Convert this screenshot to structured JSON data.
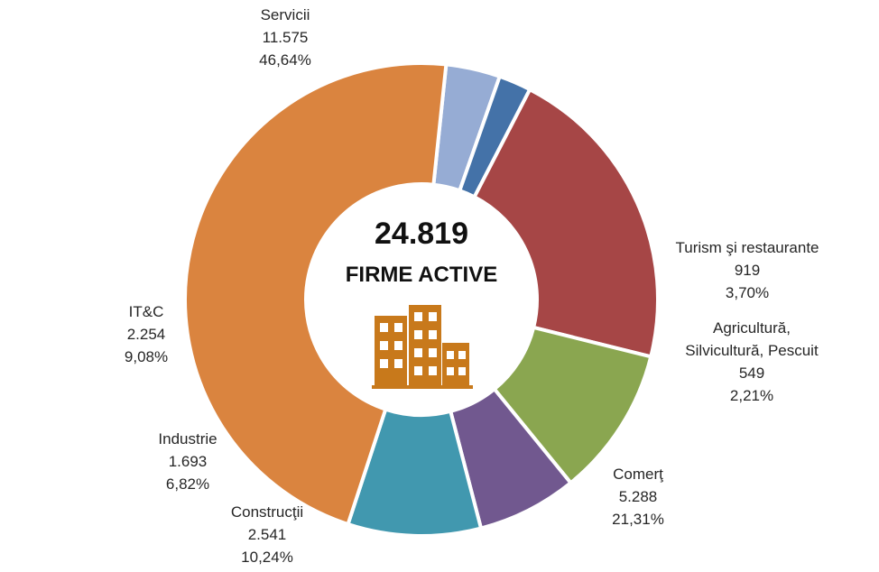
{
  "chart_data": {
    "type": "pie",
    "center": {
      "total": "24.819",
      "label": "FIRME ACTIVE",
      "icon": "buildings-icon",
      "icon_color": "#C8791B"
    },
    "slices": [
      {
        "label": "Turism şi restaurante",
        "label_lines": [
          "Turism şi restaurante"
        ],
        "value_text": "919",
        "percent_text": "3,70%",
        "value": 919,
        "percent": 3.7,
        "color": "#96ACD4"
      },
      {
        "label": "Agricultură, Silvicultură, Pescuit",
        "label_lines": [
          "Agricultură,",
          "Silvicultură, Pescuit"
        ],
        "value_text": "549",
        "percent_text": "2,21%",
        "value": 549,
        "percent": 2.21,
        "color": "#4472A8"
      },
      {
        "label": "Comerţ",
        "label_lines": [
          "Comerţ"
        ],
        "value_text": "5.288",
        "percent_text": "21,31%",
        "value": 5288,
        "percent": 21.31,
        "color": "#A64646"
      },
      {
        "label": "Construcţii",
        "label_lines": [
          "Construcţii"
        ],
        "value_text": "2.541",
        "percent_text": "10,24%",
        "value": 2541,
        "percent": 10.24,
        "color": "#8AA650"
      },
      {
        "label": "Industrie",
        "label_lines": [
          "Industrie"
        ],
        "value_text": "1.693",
        "percent_text": "6,82%",
        "value": 1693,
        "percent": 6.82,
        "color": "#71588F"
      },
      {
        "label": "IT&C",
        "label_lines": [
          "IT&C"
        ],
        "value_text": "2.254",
        "percent_text": "9,08%",
        "value": 2254,
        "percent": 9.08,
        "color": "#4198AF"
      },
      {
        "label": "Servicii",
        "label_lines": [
          "Servicii"
        ],
        "value_text": "11.575",
        "percent_text": "46,64%",
        "value": 11575,
        "percent": 46.64,
        "color": "#DA843F"
      }
    ]
  }
}
